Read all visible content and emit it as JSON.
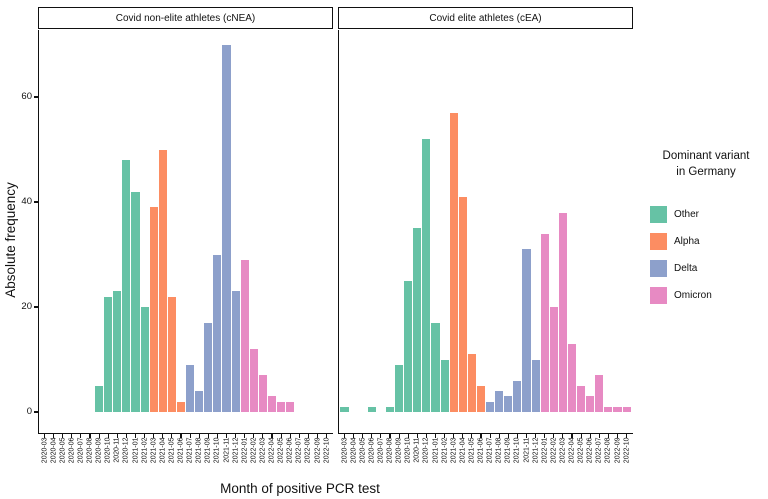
{
  "figure": {
    "y_axis_title": "Absolute frequency",
    "x_axis_title": "Month of positive PCR test"
  },
  "legend": {
    "title_line1": "Dominant variant",
    "title_line2": "in Germany",
    "items": [
      {
        "label": "Other",
        "color": "#66C2A5"
      },
      {
        "label": "Alpha",
        "color": "#FC8D62"
      },
      {
        "label": "Delta",
        "color": "#8DA0CB"
      },
      {
        "label": "Omicron",
        "color": "#E78AC3"
      }
    ]
  },
  "chart_data": {
    "type": "bar",
    "title": "",
    "xlabel": "Month of positive PCR test",
    "ylabel": "Absolute frequency",
    "ylim": [
      0,
      70
    ],
    "yticks": [
      0,
      20,
      40,
      60
    ],
    "grid": false,
    "legend_position": "right",
    "months": [
      "2020-03",
      "2020-04",
      "2020-05",
      "2020-06",
      "2020-07",
      "2020-08",
      "2020-09",
      "2020-10",
      "2020-11",
      "2020-12",
      "2021-01",
      "2021-02",
      "2021-03",
      "2021-04",
      "2021-05",
      "2021-06",
      "2021-07",
      "2021-08",
      "2021-09",
      "2021-10",
      "2021-11",
      "2021-12",
      "2022-01",
      "2022-02",
      "2022-03",
      "2022-04",
      "2022-05",
      "2022-06",
      "2022-07",
      "2022-08",
      "2022-09",
      "2022-10"
    ],
    "variant_by_month": [
      "Other",
      "Other",
      "Other",
      "Other",
      "Other",
      "Other",
      "Other",
      "Other",
      "Other",
      "Other",
      "Other",
      "Other",
      "Alpha",
      "Alpha",
      "Alpha",
      "Alpha",
      "Delta",
      "Delta",
      "Delta",
      "Delta",
      "Delta",
      "Delta",
      "Omicron",
      "Omicron",
      "Omicron",
      "Omicron",
      "Omicron",
      "Omicron",
      "Omicron",
      "Omicron",
      "Omicron",
      "Omicron"
    ],
    "colors": {
      "Other": "#66C2A5",
      "Alpha": "#FC8D62",
      "Delta": "#8DA0CB",
      "Omicron": "#E78AC3"
    },
    "facets": [
      {
        "label": "Covid non-elite athletes (cNEA)",
        "values": [
          null,
          null,
          null,
          null,
          null,
          null,
          5,
          22,
          23,
          48,
          42,
          20,
          39,
          50,
          22,
          2,
          9,
          4,
          17,
          30,
          70,
          23,
          29,
          12,
          7,
          3,
          2,
          2,
          null,
          null,
          null,
          null
        ]
      },
      {
        "label": "Covid elite athletes (cEA)",
        "values": [
          1,
          null,
          null,
          1,
          null,
          1,
          9,
          25,
          35,
          52,
          17,
          10,
          57,
          41,
          11,
          5,
          2,
          4,
          3,
          6,
          31,
          10,
          34,
          20,
          38,
          13,
          5,
          3,
          7,
          1,
          1,
          1
        ]
      }
    ]
  }
}
